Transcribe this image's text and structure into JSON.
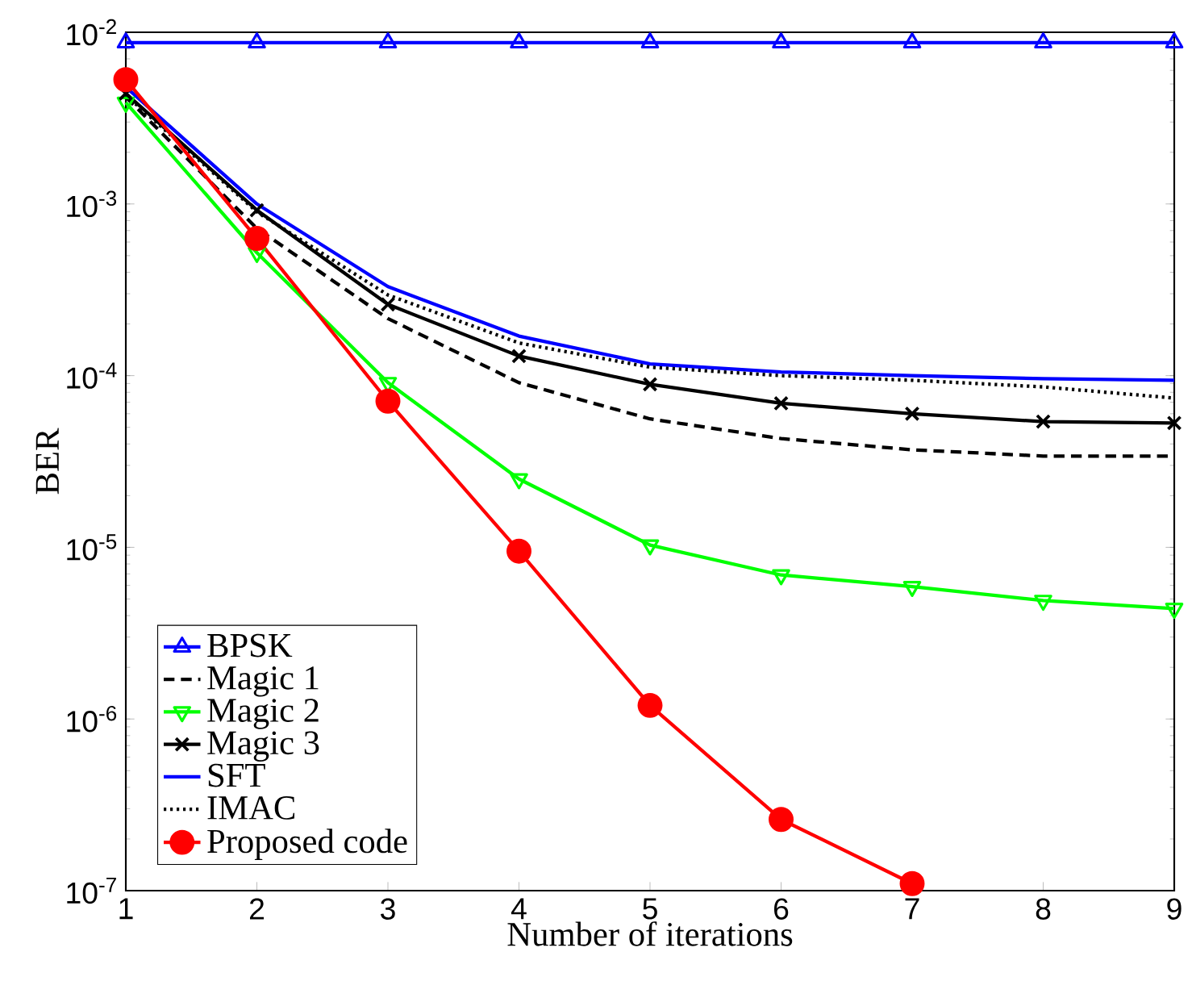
{
  "chart_data": {
    "type": "line",
    "xlabel": "Number of iterations",
    "ylabel": "BER",
    "x": [
      1,
      2,
      3,
      4,
      5,
      6,
      7,
      8,
      9
    ],
    "log": "y",
    "grid": false,
    "legend": "bottom left",
    "xlim": [
      1,
      9
    ],
    "ylim": [
      1e-07,
      0.01
    ],
    "xticks": [
      1,
      2,
      3,
      4,
      5,
      6,
      7,
      8,
      9
    ],
    "yticks": [
      {
        "value": 1e-07,
        "label": "10$^{-7}$"
      },
      {
        "value": 1e-06,
        "label": "10$^{-6}$"
      },
      {
        "value": 1e-05,
        "label": "10$^{-5}$"
      },
      {
        "value": 0.0001,
        "label": "10$^{-4}$"
      },
      {
        "value": 0.001,
        "label": "10$^{-3}$"
      },
      {
        "value": 0.01,
        "label": "10$^{-2}$"
      }
    ],
    "series": [
      {
        "name": "BPSK",
        "color": "#0000ff",
        "marker": "triangle",
        "line_style": "solid",
        "values": [
          0.0087,
          0.0087,
          0.0087,
          0.0087,
          0.0087,
          0.0087,
          0.0087,
          0.0087,
          0.0087
        ]
      },
      {
        "name": "Magic 1",
        "color": "#000000",
        "marker": "none",
        "line_style": "dashed",
        "values": [
          0.0042,
          0.00072,
          0.000215,
          9.1e-05,
          5.6e-05,
          4.3e-05,
          3.7e-05,
          3.4e-05,
          3.4e-05
        ]
      },
      {
        "name": "Magic 2",
        "color": "#00ff00",
        "marker": "triangle-down",
        "line_style": "solid",
        "values": [
          0.0039,
          0.00052,
          9.1e-05,
          2.5e-05,
          1.03e-05,
          6.9e-06,
          5.9e-06,
          4.9e-06,
          4.4e-06
        ]
      },
      {
        "name": "Magic 3",
        "color": "#000000",
        "marker": "cross",
        "line_style": "solid",
        "values": [
          0.0044,
          0.00092,
          0.00026,
          0.00013,
          8.9e-05,
          6.9e-05,
          6e-05,
          5.4e-05,
          5.3e-05
        ]
      },
      {
        "name": "SFT",
        "color": "#0000ff",
        "marker": "none",
        "line_style": "solid",
        "values": [
          0.0048,
          0.001,
          0.00033,
          0.00017,
          0.000117,
          0.000105,
          0.0001,
          9.6e-05,
          9.4e-05
        ]
      },
      {
        "name": "IMAC",
        "color": "#000000",
        "marker": "none",
        "line_style": "dotted",
        "values": [
          0.0043,
          0.0009,
          0.000295,
          0.000155,
          0.000112,
          0.0001,
          9.4e-05,
          8.6e-05,
          7.4e-05
        ]
      },
      {
        "name": "Proposed code",
        "color": "#ff0000",
        "marker": "circle",
        "line_style": "solid",
        "values": [
          0.0053,
          0.00063,
          7.1e-05,
          9.5e-06,
          1.2e-06,
          2.6e-07,
          1.1e-07,
          null,
          null
        ]
      }
    ]
  }
}
